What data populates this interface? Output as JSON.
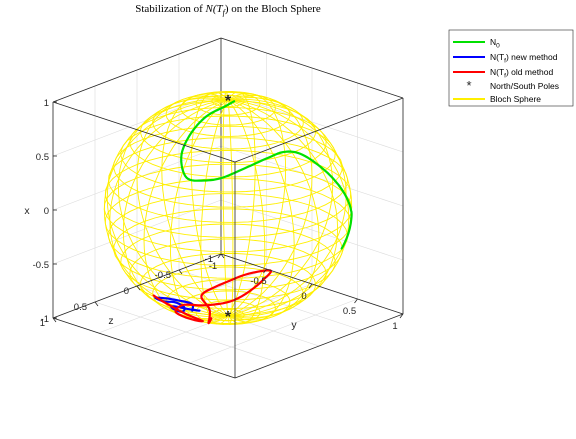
{
  "chart_data": {
    "type": "line",
    "title": "Stabilization of N(T_f) on the Bloch Sphere",
    "title_parts": {
      "prefix": "Stabilization of ",
      "math": "N(T",
      "math_sub": "f",
      "math_end": ")",
      "suffix": " on the Bloch Sphere"
    },
    "xlabel": "y",
    "ylabel": "z",
    "zlabel": "x",
    "axes_mapping": {
      "horizontal_right": "y",
      "horizontal_left": "z",
      "vertical": "x"
    },
    "xlim": [
      -1,
      1
    ],
    "ylim": [
      -1,
      1
    ],
    "zlim": [
      -1,
      1
    ],
    "grid": true,
    "legend_position": "top-right",
    "y_ticks": [
      "-1",
      "-0.5",
      "0",
      "0.5",
      "1"
    ],
    "z_ticks": [
      "-1",
      "-0.5",
      "0",
      "0.5",
      "1"
    ],
    "x_ticks": [
      "-1",
      "-0.5",
      "0",
      "0.5",
      "1"
    ],
    "series": [
      {
        "name": "N_0",
        "legend_main": "N",
        "legend_sub": "0",
        "color": "#00e000",
        "points": [
          [
            -0.25,
            0.9,
            -0.4
          ],
          [
            -0.08,
            0.8,
            -0.72
          ],
          [
            -0.06,
            0.7,
            -0.8
          ],
          [
            -0.02,
            0.52,
            -0.86
          ],
          [
            0.04,
            0.3,
            -0.88
          ],
          [
            0.1,
            0.1,
            -0.86
          ],
          [
            0.16,
            -0.1,
            -0.85
          ],
          [
            0.15,
            -0.25,
            -0.88
          ],
          [
            0.08,
            -0.4,
            -0.9
          ],
          [
            -0.02,
            -0.55,
            -0.83
          ],
          [
            -0.12,
            -0.7,
            -0.7
          ],
          [
            -0.14,
            -0.8,
            -0.58
          ],
          [
            -0.1,
            -0.88,
            -0.46
          ],
          [
            0.1,
            -0.9,
            -0.42
          ],
          [
            0.3,
            -0.84,
            -0.45
          ],
          [
            0.5,
            -0.7,
            -0.5
          ],
          [
            0.62,
            -0.56,
            -0.56
          ],
          [
            0.7,
            -0.45,
            -0.56
          ]
        ]
      },
      {
        "name": "N(T_f) new method",
        "legend_main": "N(T",
        "legend_sub": "f",
        "legend_rest": ") new method",
        "color": "#0000ff",
        "points": [
          [
            -0.68,
            0.25,
            0.7
          ],
          [
            -0.58,
            0.3,
            0.77
          ],
          [
            -0.56,
            0.1,
            0.8
          ],
          [
            -0.62,
            -0.08,
            0.78
          ],
          [
            -0.64,
            0.0,
            0.78
          ],
          [
            -0.6,
            0.14,
            0.79
          ],
          [
            -0.64,
            0.2,
            0.74
          ],
          [
            -0.72,
            0.15,
            0.7
          ],
          [
            -0.74,
            0.08,
            0.68
          ],
          [
            -0.7,
            0.04,
            0.72
          ],
          [
            -0.66,
            0.12,
            0.74
          ],
          [
            -0.67,
            0.32,
            0.69
          ]
        ]
      },
      {
        "name": "N(T_f) old method",
        "legend_main": "N(T",
        "legend_sub": "f",
        "legend_rest": ") old method",
        "color": "#ff0000",
        "points": [
          [
            -0.8,
            -0.42,
            0.43
          ],
          [
            -0.9,
            -0.26,
            0.34
          ],
          [
            -0.94,
            0.02,
            0.32
          ],
          [
            -0.78,
            0.0,
            0.6
          ],
          [
            -0.62,
            0.2,
            0.76
          ],
          [
            -0.58,
            0.4,
            0.71
          ],
          [
            -0.5,
            0.62,
            0.6
          ],
          [
            -0.3,
            0.82,
            0.48
          ],
          [
            -0.2,
            0.86,
            0.44
          ],
          [
            -0.24,
            0.72,
            0.64
          ],
          [
            -0.44,
            0.44,
            0.78
          ],
          [
            -0.64,
            0.4,
            0.65
          ],
          [
            -0.9,
            0.14,
            0.38
          ],
          [
            -0.96,
            -0.04,
            0.15
          ]
        ]
      },
      {
        "name": "North/South Poles",
        "legend_main": "North/South Poles",
        "color": "#ff0000",
        "marker": "*",
        "points": [
          [
            1,
            0,
            0
          ],
          [
            -1,
            0,
            0
          ]
        ]
      },
      {
        "name": "Bloch Sphere",
        "legend_main": "Bloch Sphere",
        "color": "#ffef00",
        "surface": "unit_sphere_wireframe"
      }
    ]
  }
}
